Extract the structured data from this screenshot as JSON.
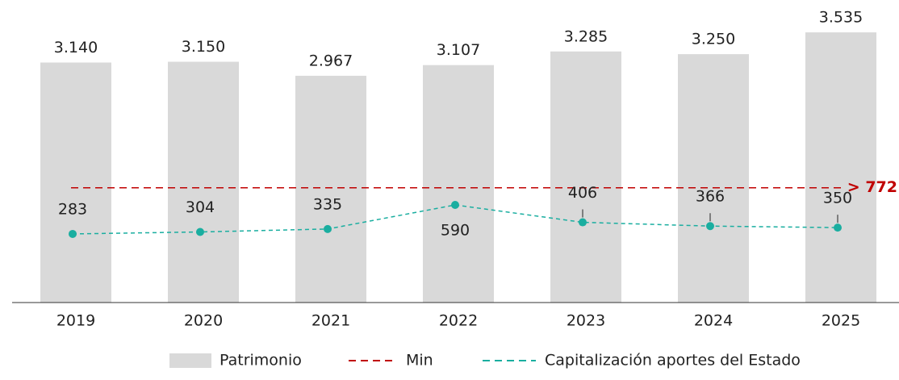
{
  "chart_data": {
    "type": "bar",
    "categories": [
      "2019",
      "2020",
      "2021",
      "2022",
      "2023",
      "2024",
      "2025"
    ],
    "series": [
      {
        "name": "Patrimonio",
        "type": "bar",
        "color": "#d9d9d9",
        "values": [
          3140,
          3150,
          2967,
          3107,
          3285,
          3250,
          3535
        ],
        "value_labels": [
          "3.140",
          "3.150",
          "2.967",
          "3.107",
          "3.285",
          "3.250",
          "3.535"
        ]
      },
      {
        "name": "Capitalización aportes del Estado",
        "type": "line",
        "axis": "y2",
        "color": "#1aaea0",
        "values": [
          283,
          304,
          335,
          590,
          406,
          366,
          350
        ]
      }
    ],
    "min_line": {
      "name": "Min",
      "value": 772,
      "label": "> 772",
      "color": "#c00000",
      "axis": "y2"
    },
    "ylim": [
      0,
      3800
    ],
    "y2lim": [
      -444,
      2633
    ]
  }
}
